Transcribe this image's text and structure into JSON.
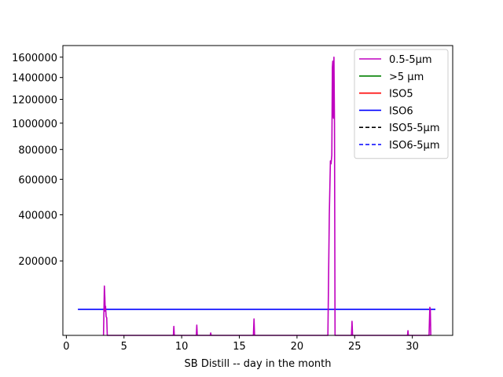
{
  "chart_data": {
    "type": "line",
    "title": "",
    "xlabel": "SB Distill -- day in the month",
    "ylabel": "",
    "y_scale": "sqrt",
    "xlim": [
      -0.3,
      33.5
    ],
    "ylim": [
      22000,
      1720000
    ],
    "grid": false,
    "legend_position": "top-right",
    "x_ticks": [
      0,
      5,
      10,
      15,
      20,
      25,
      30
    ],
    "x_tick_labels": [
      "0",
      "5",
      "10",
      "15",
      "20",
      "25",
      "30"
    ],
    "y_ticks": [
      200000,
      400000,
      600000,
      800000,
      1000000,
      1200000,
      1400000,
      1600000
    ],
    "y_tick_labels": [
      "200000",
      "400000",
      "600000",
      "800000",
      "1000000",
      "1200000",
      "1400000",
      "1600000"
    ],
    "series": [
      {
        "name": "0.5-5µm",
        "color": "#bf00bf",
        "dash": "solid",
        "points": [
          [
            3.22,
            22000
          ],
          [
            3.3,
            120000
          ],
          [
            3.34,
            90000
          ],
          [
            3.37,
            60000
          ],
          [
            3.4,
            70000
          ],
          [
            3.45,
            50000
          ],
          [
            3.5,
            48000
          ],
          [
            3.55,
            22000
          ],
          [
            9.28,
            22000
          ],
          [
            9.32,
            34000
          ],
          [
            9.36,
            22000
          ],
          [
            11.27,
            22000
          ],
          [
            11.31,
            36000
          ],
          [
            11.35,
            22000
          ],
          [
            12.48,
            22000
          ],
          [
            12.52,
            25000
          ],
          [
            12.56,
            22000
          ],
          [
            16.22,
            22000
          ],
          [
            16.27,
            46000
          ],
          [
            16.32,
            22000
          ],
          [
            22.68,
            22000
          ],
          [
            22.8,
            400000
          ],
          [
            22.9,
            720000
          ],
          [
            22.95,
            700000
          ],
          [
            23.02,
            760000
          ],
          [
            23.07,
            1500000
          ],
          [
            23.1,
            1560000
          ],
          [
            23.13,
            1100000
          ],
          [
            23.16,
            1040000
          ],
          [
            23.2,
            1600000
          ],
          [
            23.25,
            1000000
          ],
          [
            23.3,
            22000
          ],
          [
            24.72,
            22000
          ],
          [
            24.77,
            42000
          ],
          [
            24.82,
            22000
          ],
          [
            29.58,
            22000
          ],
          [
            29.62,
            28000
          ],
          [
            29.66,
            22000
          ],
          [
            31.45,
            22000
          ],
          [
            31.52,
            68000
          ],
          [
            31.56,
            65000
          ],
          [
            31.6,
            22000
          ]
        ]
      },
      {
        "name": ">5 µm",
        "color": "#008000",
        "dash": "solid",
        "points": [
          [
            1,
            0
          ],
          [
            32,
            0
          ]
        ]
      },
      {
        "name": "ISO5",
        "color": "#ff0000",
        "dash": "solid",
        "points": [
          [
            1,
            3520
          ],
          [
            32,
            3520
          ]
        ]
      },
      {
        "name": "ISO6",
        "color": "#0000ff",
        "dash": "solid",
        "points": [
          [
            1,
            64000
          ],
          [
            32,
            64000
          ]
        ]
      },
      {
        "name": "ISO5-5µm",
        "color": "#000000",
        "dash": "dashed",
        "points": [
          [
            1,
            29
          ],
          [
            32,
            29
          ]
        ]
      },
      {
        "name": "ISO6-5µm",
        "color": "#0000ff",
        "dash": "dashed",
        "points": [
          [
            1,
            293
          ],
          [
            32,
            293
          ]
        ]
      }
    ]
  }
}
